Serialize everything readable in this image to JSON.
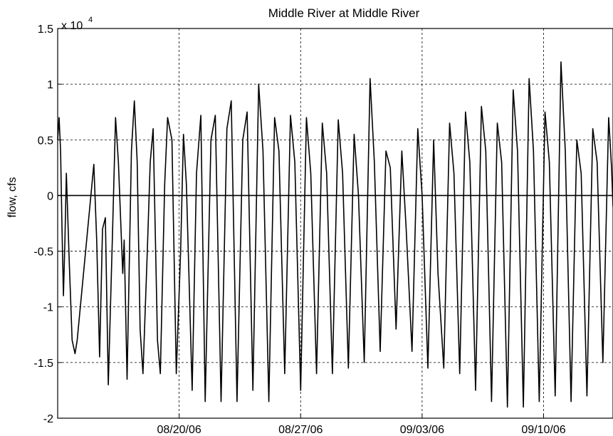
{
  "chart_data": {
    "type": "line",
    "title": "Middle River at Middle River",
    "xlabel": "",
    "ylabel": "flow, cfs",
    "y_multiplier": {
      "base": "x 10",
      "exponent": "4"
    },
    "xlim": [
      "2006-08-13",
      "2006-09-14"
    ],
    "ylim": [
      -2,
      1.5
    ],
    "y_ticks": [
      "1.5",
      "1",
      "0.5",
      "0",
      "-0.5",
      "-1",
      "-1.5",
      "-2"
    ],
    "x_ticks": [
      {
        "date": "2006-08-20",
        "label": "08/20/06"
      },
      {
        "date": "2006-08-27",
        "label": "08/27/06"
      },
      {
        "date": "2006-09-03",
        "label": "09/03/06"
      },
      {
        "date": "2006-09-10",
        "label": "09/10/06"
      }
    ],
    "grid": true,
    "reference_line": 0,
    "units": "cfs (x 10^4)",
    "series": [
      {
        "values": [
          [
            "2006-08-13 00:00",
            0.5
          ],
          [
            "2006-08-13 02:00",
            0.7
          ],
          [
            "2006-08-13 04:00",
            0.4
          ],
          [
            "2006-08-13 06:00",
            -0.3
          ],
          [
            "2006-08-13 08:00",
            -0.9
          ],
          [
            "2006-08-13 10:00",
            -0.4
          ],
          [
            "2006-08-13 12:00",
            0.2
          ],
          [
            "2006-08-13 16:00",
            -0.6
          ],
          [
            "2006-08-13 20:00",
            -1.3
          ],
          [
            "2006-08-14 00:00",
            -1.42
          ],
          [
            "2006-08-14 03:00",
            -1.3
          ],
          [
            "2006-08-15 02:00",
            0.28
          ],
          [
            "2006-08-15 06:00",
            -0.4
          ],
          [
            "2006-08-15 10:00",
            -1.45
          ],
          [
            "2006-08-15 14:00",
            -0.3
          ],
          [
            "2006-08-15 18:00",
            -0.2
          ],
          [
            "2006-08-15 22:00",
            -1.7
          ],
          [
            "2006-08-16 04:00",
            -0.3
          ],
          [
            "2006-08-16 08:00",
            0.7
          ],
          [
            "2006-08-16 12:00",
            0.3
          ],
          [
            "2006-08-16 18:00",
            -0.7
          ],
          [
            "2006-08-16 20:00",
            -0.4
          ],
          [
            "2006-08-17 00:00",
            -1.65
          ],
          [
            "2006-08-17 06:00",
            0.4
          ],
          [
            "2006-08-17 10:00",
            0.85
          ],
          [
            "2006-08-17 14:00",
            0.3
          ],
          [
            "2006-08-17 18:00",
            -1.2
          ],
          [
            "2006-08-17 22:00",
            -1.6
          ],
          [
            "2006-08-18 04:00",
            -0.5
          ],
          [
            "2006-08-18 08:00",
            0.3
          ],
          [
            "2006-08-18 12:00",
            0.6
          ],
          [
            "2006-08-18 18:00",
            -1.3
          ],
          [
            "2006-08-18 22:00",
            -1.6
          ],
          [
            "2006-08-19 04:00",
            0.1
          ],
          [
            "2006-08-19 08:00",
            0.7
          ],
          [
            "2006-08-19 14:00",
            0.5
          ],
          [
            "2006-08-19 20:00",
            -1.6
          ],
          [
            "2006-08-20 02:00",
            -0.5
          ],
          [
            "2006-08-20 06:00",
            0.55
          ],
          [
            "2006-08-20 10:00",
            0.1
          ],
          [
            "2006-08-20 18:00",
            -1.75
          ],
          [
            "2006-08-21 00:00",
            0.2
          ],
          [
            "2006-08-21 06:00",
            0.72
          ],
          [
            "2006-08-21 12:00",
            -1.85
          ],
          [
            "2006-08-21 20:00",
            0.5
          ],
          [
            "2006-08-22 02:00",
            0.72
          ],
          [
            "2006-08-22 10:00",
            -1.85
          ],
          [
            "2006-08-22 18:00",
            0.6
          ],
          [
            "2006-08-23 00:00",
            0.85
          ],
          [
            "2006-08-23 08:00",
            -1.85
          ],
          [
            "2006-08-23 16:00",
            0.5
          ],
          [
            "2006-08-23 22:00",
            0.75
          ],
          [
            "2006-08-24 06:00",
            -1.75
          ],
          [
            "2006-08-24 14:00",
            1.0
          ],
          [
            "2006-08-24 20:00",
            0.4
          ],
          [
            "2006-08-25 04:00",
            -1.85
          ],
          [
            "2006-08-25 12:00",
            0.7
          ],
          [
            "2006-08-25 18:00",
            0.4
          ],
          [
            "2006-08-26 02:00",
            -1.6
          ],
          [
            "2006-08-26 10:00",
            0.72
          ],
          [
            "2006-08-26 16:00",
            0.3
          ],
          [
            "2006-08-27 00:00",
            -1.75
          ],
          [
            "2006-08-27 08:00",
            0.7
          ],
          [
            "2006-08-27 14:00",
            0.2
          ],
          [
            "2006-08-27 22:00",
            -1.6
          ],
          [
            "2006-08-28 06:00",
            0.65
          ],
          [
            "2006-08-28 12:00",
            0.2
          ],
          [
            "2006-08-28 20:00",
            -1.6
          ],
          [
            "2006-08-29 04:00",
            0.68
          ],
          [
            "2006-08-29 10:00",
            0.2
          ],
          [
            "2006-08-29 18:00",
            -1.55
          ],
          [
            "2006-08-30 02:00",
            0.55
          ],
          [
            "2006-08-30 08:00",
            0.0
          ],
          [
            "2006-08-30 16:00",
            -1.5
          ],
          [
            "2006-08-31 00:00",
            1.05
          ],
          [
            "2006-08-31 06:00",
            0.3
          ],
          [
            "2006-08-31 14:00",
            -1.4
          ],
          [
            "2006-08-31 22:00",
            0.4
          ],
          [
            "2006-09-01 04:00",
            0.25
          ],
          [
            "2006-09-01 12:00",
            -1.2
          ],
          [
            "2006-09-01 20:00",
            0.4
          ],
          [
            "2006-09-02 02:00",
            -0.3
          ],
          [
            "2006-09-02 10:00",
            -1.4
          ],
          [
            "2006-09-02 18:00",
            0.6
          ],
          [
            "2006-09-03 00:00",
            0.0
          ],
          [
            "2006-09-03 08:00",
            -1.55
          ],
          [
            "2006-09-03 16:00",
            0.5
          ],
          [
            "2006-09-03 22:00",
            -0.7
          ],
          [
            "2006-09-04 06:00",
            -1.55
          ],
          [
            "2006-09-04 14:00",
            0.65
          ],
          [
            "2006-09-04 20:00",
            0.2
          ],
          [
            "2006-09-05 04:00",
            -1.6
          ],
          [
            "2006-09-05 12:00",
            0.75
          ],
          [
            "2006-09-05 18:00",
            0.3
          ],
          [
            "2006-09-06 02:00",
            -1.75
          ],
          [
            "2006-09-06 10:00",
            0.8
          ],
          [
            "2006-09-06 16:00",
            0.4
          ],
          [
            "2006-09-07 00:00",
            -1.85
          ],
          [
            "2006-09-07 08:00",
            0.65
          ],
          [
            "2006-09-07 14:00",
            0.3
          ],
          [
            "2006-09-07 22:00",
            -1.9
          ],
          [
            "2006-09-08 06:00",
            0.95
          ],
          [
            "2006-09-08 12:00",
            0.4
          ],
          [
            "2006-09-08 20:00",
            -1.9
          ],
          [
            "2006-09-09 04:00",
            1.05
          ],
          [
            "2006-09-09 10:00",
            0.4
          ],
          [
            "2006-09-09 18:00",
            -1.85
          ],
          [
            "2006-09-10 02:00",
            0.75
          ],
          [
            "2006-09-10 08:00",
            0.3
          ],
          [
            "2006-09-10 16:00",
            -1.8
          ],
          [
            "2006-09-11 00:00",
            1.2
          ],
          [
            "2006-09-11 06:00",
            0.4
          ],
          [
            "2006-09-11 14:00",
            -1.85
          ],
          [
            "2006-09-11 22:00",
            0.5
          ],
          [
            "2006-09-12 04:00",
            0.2
          ],
          [
            "2006-09-12 12:00",
            -1.8
          ],
          [
            "2006-09-12 20:00",
            0.6
          ],
          [
            "2006-09-13 02:00",
            0.3
          ],
          [
            "2006-09-13 10:00",
            -1.5
          ],
          [
            "2006-09-13 18:00",
            0.7
          ],
          [
            "2006-09-13 22:00",
            0.25
          ],
          [
            "2006-09-14 00:00",
            -0.1
          ]
        ]
      }
    ]
  }
}
